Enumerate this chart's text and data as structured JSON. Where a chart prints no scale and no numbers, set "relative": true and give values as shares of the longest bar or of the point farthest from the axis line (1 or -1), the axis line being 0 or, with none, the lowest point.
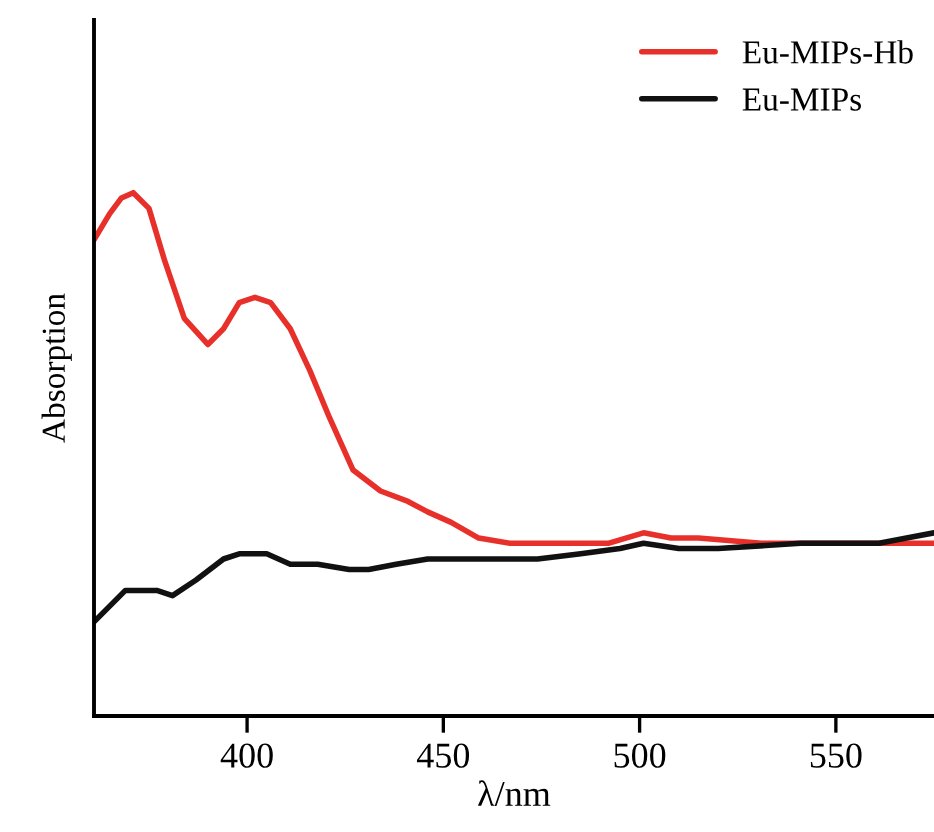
{
  "chart_data": {
    "type": "line",
    "xlabel": "λ/nm",
    "ylabel": "Absorption",
    "relative": true,
    "xlim": [
      361,
      575
    ],
    "xticks": [
      400,
      450,
      500,
      550
    ],
    "legend": "top right",
    "series": [
      {
        "name": "Eu-MIPs-Hb",
        "color": "#e8302a",
        "x": [
          361,
          365,
          368,
          371,
          375,
          379,
          384,
          390,
          394,
          398,
          402,
          406,
          411,
          416,
          421,
          427,
          434,
          441,
          446,
          452,
          459,
          467,
          475,
          485,
          492,
          501,
          508,
          515,
          531,
          551,
          575
        ],
        "values": [
          0.91,
          0.96,
          0.99,
          1.0,
          0.97,
          0.87,
          0.76,
          0.71,
          0.74,
          0.79,
          0.8,
          0.79,
          0.74,
          0.66,
          0.57,
          0.47,
          0.43,
          0.41,
          0.39,
          0.37,
          0.34,
          0.33,
          0.33,
          0.33,
          0.33,
          0.35,
          0.34,
          0.34,
          0.33,
          0.33,
          0.33
        ]
      },
      {
        "name": "Eu-MIPs",
        "color": "#111111",
        "x": [
          361,
          365,
          369,
          373,
          377,
          381,
          387,
          394,
          398,
          405,
          411,
          418,
          426,
          431,
          438,
          446,
          459,
          474,
          485,
          495,
          501,
          510,
          520,
          541,
          561,
          568,
          575
        ],
        "values": [
          0.18,
          0.21,
          0.24,
          0.24,
          0.24,
          0.23,
          0.26,
          0.3,
          0.31,
          0.31,
          0.29,
          0.29,
          0.28,
          0.28,
          0.29,
          0.3,
          0.3,
          0.3,
          0.31,
          0.32,
          0.33,
          0.32,
          0.32,
          0.33,
          0.33,
          0.34,
          0.35
        ]
      }
    ]
  }
}
